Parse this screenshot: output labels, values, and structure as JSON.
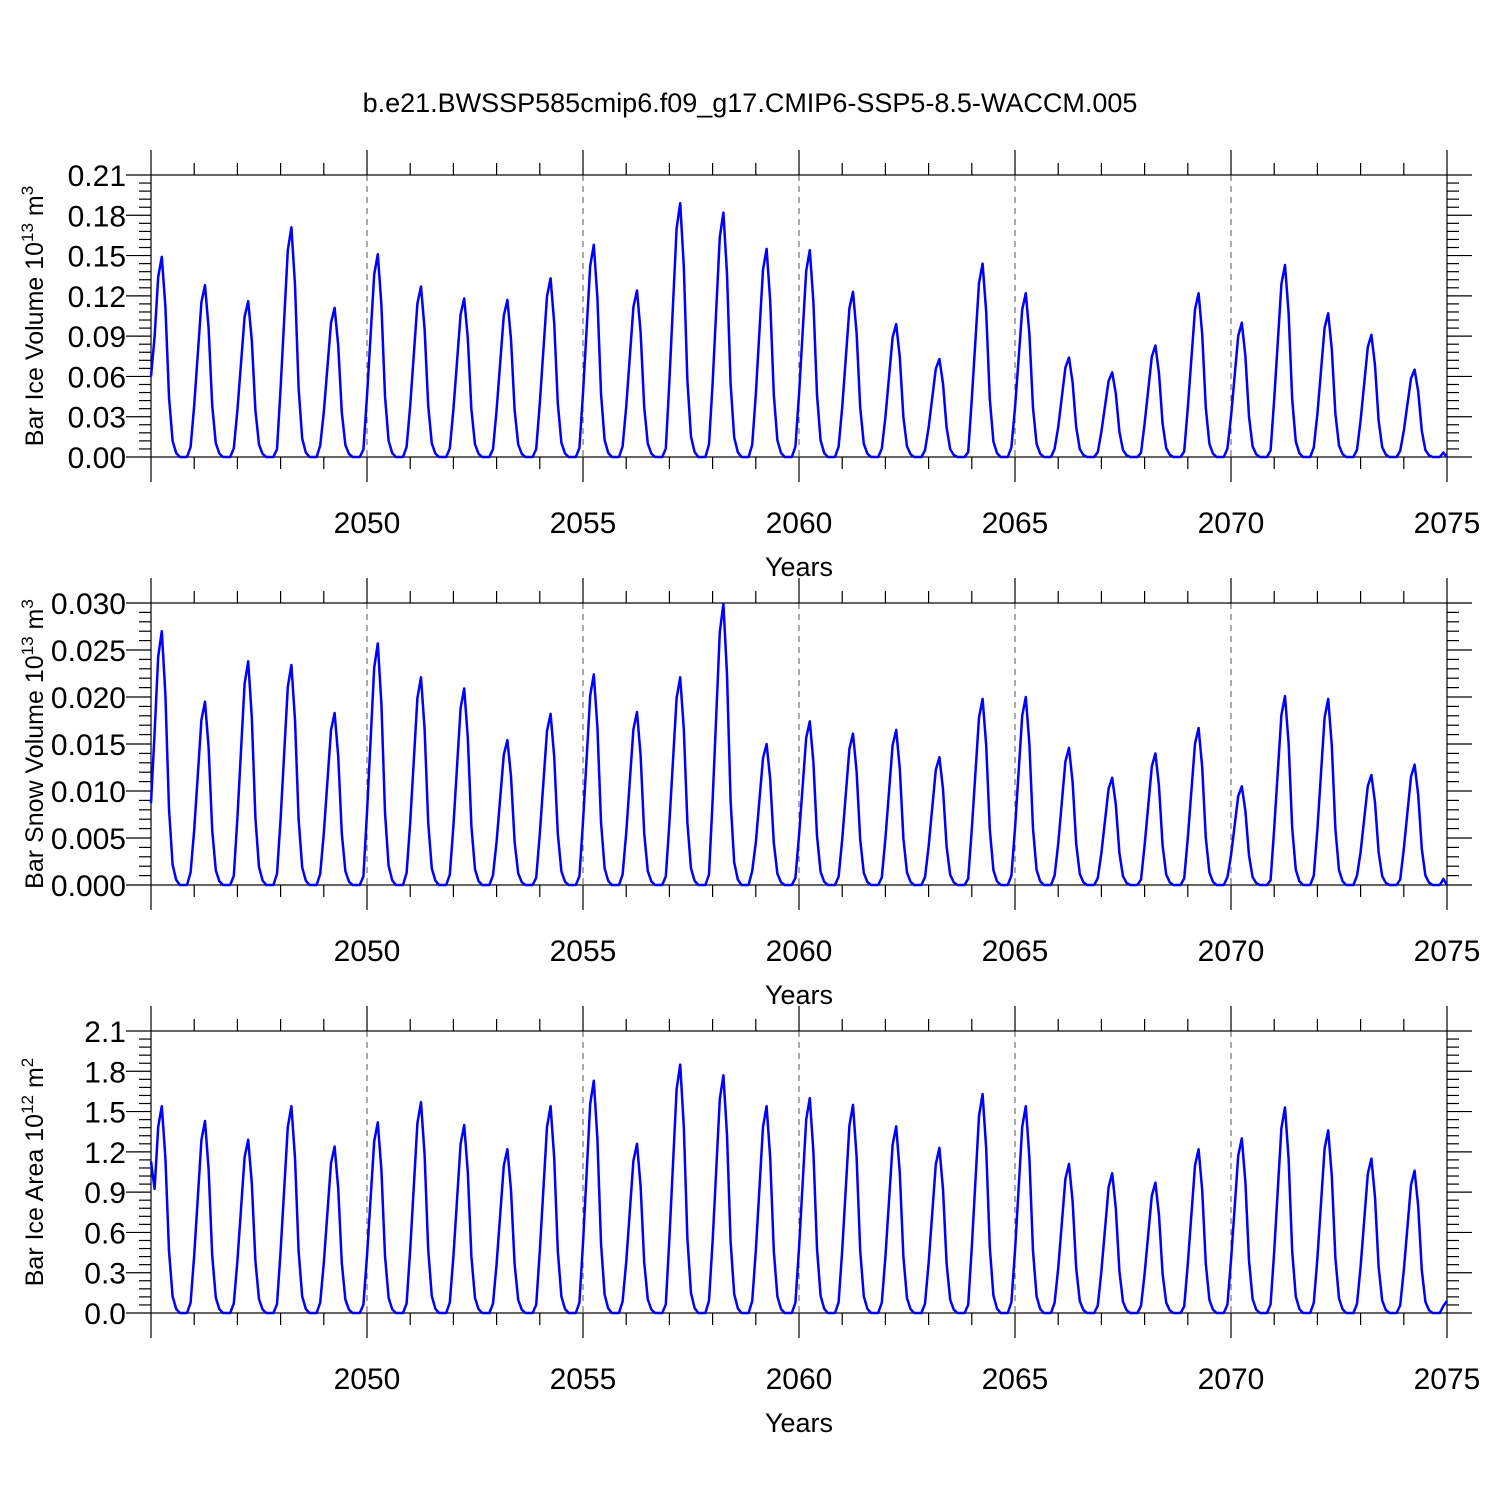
{
  "figure_title": "b.e21.BWSSP585cmip6.f09_g17.CMIP6-SSP5-8.5-WACCM.005",
  "series_color": "#0000ff",
  "chart_data": [
    {
      "type": "line",
      "name": "ice-volume",
      "ylabel_main": "Bar Ice Volume 10",
      "ylabel_exp": "13",
      "ylabel_unit": " m",
      "ylabel_unit_exp": "3",
      "xlabel": "Years",
      "xlim": [
        2045.0,
        2075.0
      ],
      "ylim": [
        0,
        0.21
      ],
      "xticks": [
        2050,
        2055,
        2060,
        2065,
        2070,
        2075
      ],
      "xtick_labels": [
        "2050",
        "2055",
        "2060",
        "2065",
        "2070",
        "2075"
      ],
      "yticks": [
        0,
        0.03,
        0.06,
        0.09,
        0.12,
        0.15,
        0.18,
        0.21
      ],
      "ytick_labels": [
        "0.00",
        "0.03",
        "0.06",
        "0.09",
        "0.12",
        "0.15",
        "0.18",
        "0.21"
      ],
      "grid_x": [
        2050,
        2055,
        2060,
        2065,
        2070
      ],
      "annual_peaks": [
        0.149,
        0.128,
        0.116,
        0.171,
        0.111,
        0.151,
        0.127,
        0.118,
        0.117,
        0.133,
        0.158,
        0.124,
        0.189,
        0.182,
        0.155,
        0.154,
        0.123,
        0.099,
        0.073,
        0.144,
        0.122,
        0.074,
        0.063,
        0.083,
        0.122,
        0.1,
        0.143,
        0.107,
        0.091,
        0.065
      ],
      "start_value": 0.06,
      "end_value": 0.0
    },
    {
      "type": "line",
      "name": "snow-volume",
      "ylabel_main": "Bar Snow Volume 10",
      "ylabel_exp": "13",
      "ylabel_unit": " m",
      "ylabel_unit_exp": "3",
      "xlabel": "Years",
      "xlim": [
        2045.0,
        2075.0
      ],
      "ylim": [
        0,
        0.03
      ],
      "xticks": [
        2050,
        2055,
        2060,
        2065,
        2070,
        2075
      ],
      "xtick_labels": [
        "2050",
        "2055",
        "2060",
        "2065",
        "2070",
        "2075"
      ],
      "yticks": [
        0,
        0.005,
        0.01,
        0.015,
        0.02,
        0.025,
        0.03
      ],
      "ytick_labels": [
        "0.000",
        "0.005",
        "0.010",
        "0.015",
        "0.020",
        "0.025",
        "0.030"
      ],
      "grid_x": [
        2050,
        2055,
        2060,
        2065,
        2070
      ],
      "annual_peaks": [
        0.027,
        0.0195,
        0.0238,
        0.0234,
        0.0183,
        0.0257,
        0.0221,
        0.0209,
        0.0154,
        0.0182,
        0.0224,
        0.0184,
        0.0221,
        0.0299,
        0.015,
        0.0174,
        0.0161,
        0.0165,
        0.0136,
        0.0198,
        0.02,
        0.0146,
        0.0114,
        0.014,
        0.0167,
        0.0105,
        0.0201,
        0.0198,
        0.0117,
        0.0128
      ],
      "start_value": 0.0087,
      "end_value": 0.0
    },
    {
      "type": "line",
      "name": "ice-area",
      "ylabel_main": "Bar Ice Area 10",
      "ylabel_exp": "12",
      "ylabel_unit": " m",
      "ylabel_unit_exp": "2",
      "xlabel": "Years",
      "xlim": [
        2045.0,
        2075.0
      ],
      "ylim": [
        0,
        2.1
      ],
      "xticks": [
        2050,
        2055,
        2060,
        2065,
        2070,
        2075
      ],
      "xtick_labels": [
        "2050",
        "2055",
        "2060",
        "2065",
        "2070",
        "2075"
      ],
      "yticks": [
        0,
        0.3,
        0.6,
        0.9,
        1.2,
        1.5,
        1.8,
        2.1
      ],
      "ytick_labels": [
        "0.0",
        "0.3",
        "0.6",
        "0.9",
        "1.2",
        "1.5",
        "1.8",
        "2.1"
      ],
      "grid_x": [
        2050,
        2055,
        2060,
        2065,
        2070
      ],
      "annual_peaks": [
        1.54,
        1.43,
        1.29,
        1.54,
        1.24,
        1.42,
        1.57,
        1.4,
        1.22,
        1.54,
        1.73,
        1.26,
        1.85,
        1.77,
        1.54,
        1.6,
        1.55,
        1.39,
        1.23,
        1.63,
        1.54,
        1.11,
        1.04,
        0.97,
        1.22,
        1.3,
        1.53,
        1.36,
        1.15,
        1.06
      ],
      "start_value": 1.13,
      "end_value": 0.09
    }
  ]
}
